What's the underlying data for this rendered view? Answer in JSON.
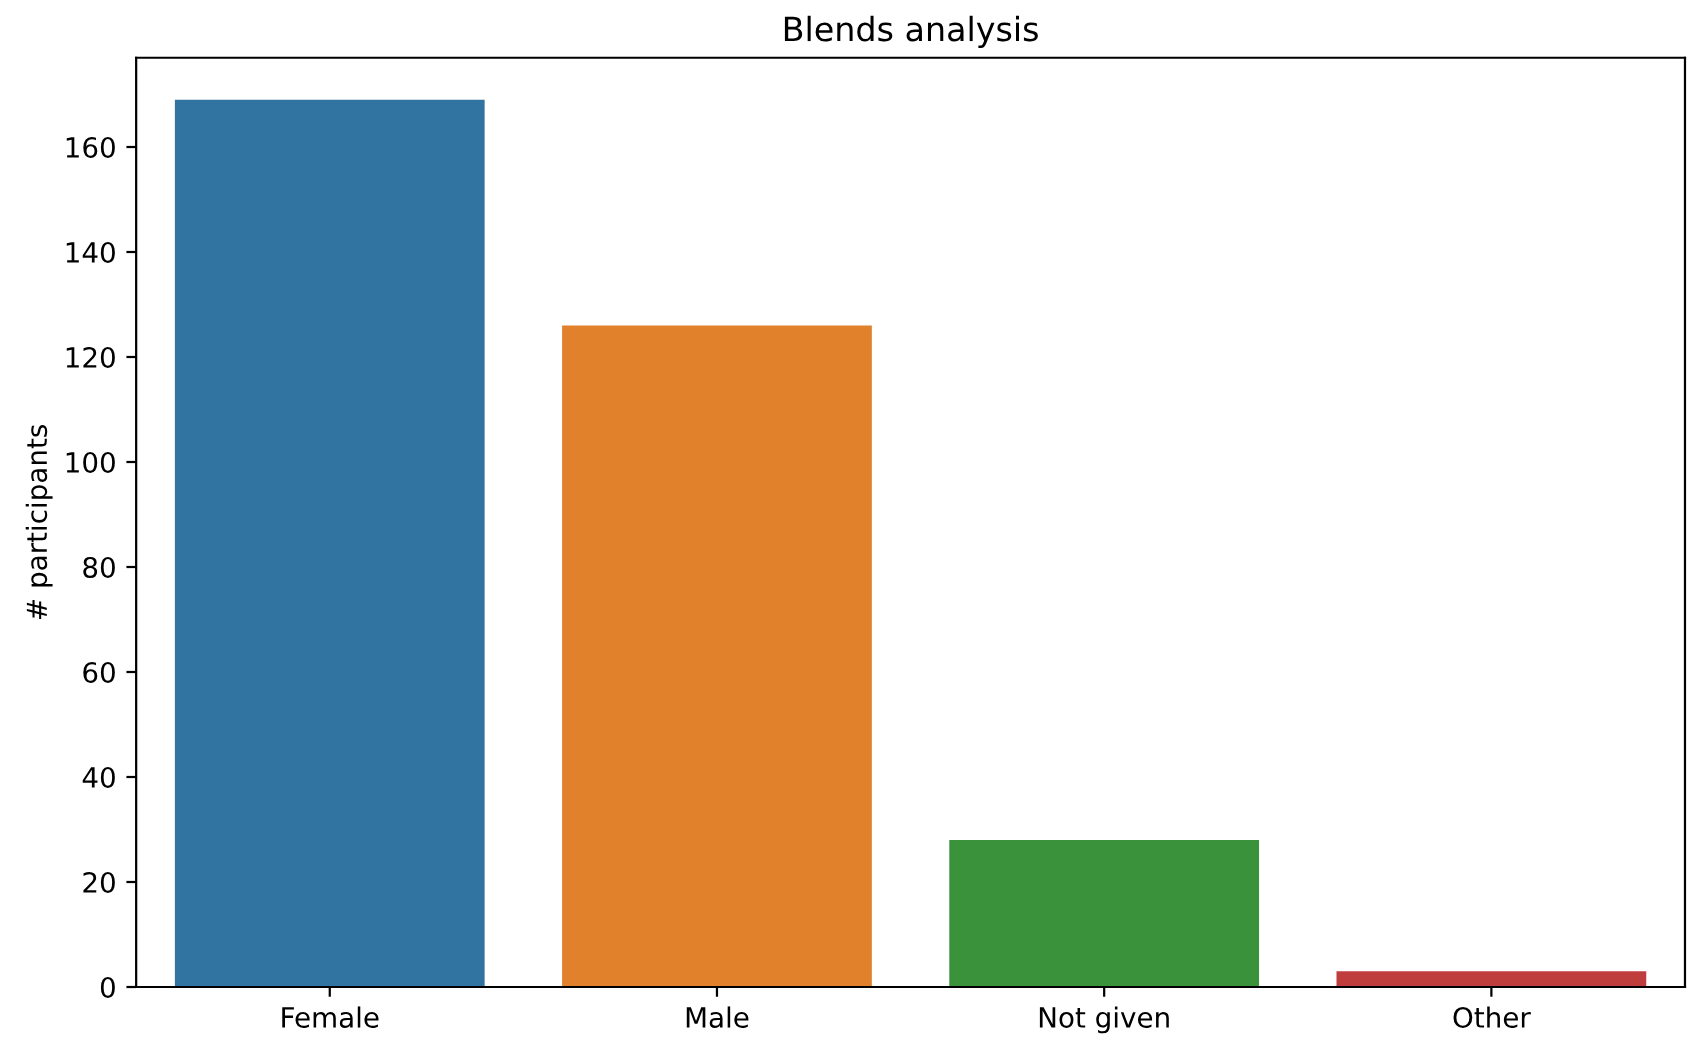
{
  "chart_data": {
    "type": "bar",
    "title": "Blends analysis",
    "ylabel": "# participants",
    "categories": [
      "Female",
      "Male",
      "Not given",
      "Other"
    ],
    "values": [
      169,
      126,
      28,
      3
    ],
    "colors": [
      "#3274a1",
      "#e1812c",
      "#3a923a",
      "#c03d3e"
    ],
    "ylim": [
      0,
      177
    ],
    "yticks": [
      0,
      20,
      40,
      60,
      80,
      100,
      120,
      140,
      160
    ],
    "grid": false,
    "legend": false
  }
}
